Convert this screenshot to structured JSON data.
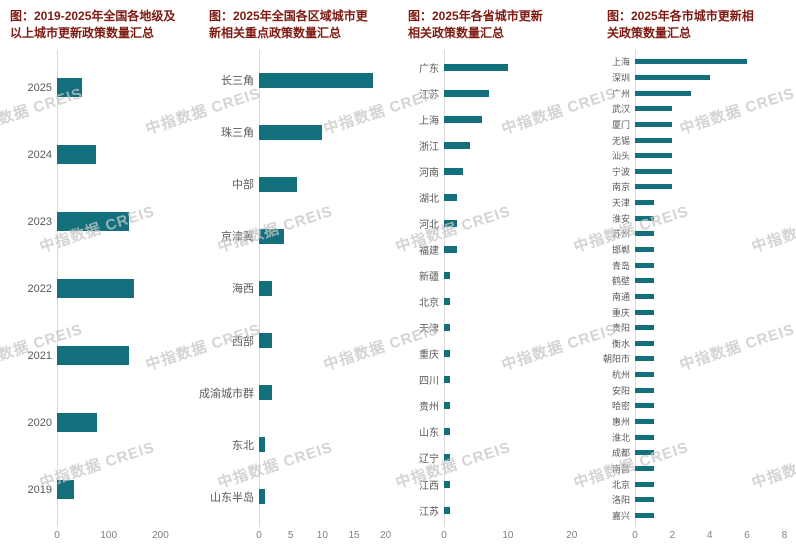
{
  "page": {
    "background": "#ffffff"
  },
  "colors": {
    "bar": "#126f7c",
    "title": "#7e1a12",
    "category_label": "#595959",
    "tick_label": "#808080",
    "axis_line": "#d9d9d9",
    "watermark": "#c6c6c6"
  },
  "watermark": {
    "text": "中指数据 CREIS"
  },
  "chart_data": [
    {
      "type": "bar",
      "orientation": "horizontal",
      "grid": false,
      "legend": false,
      "title": "图：2019-2025年全国各地级及以上城市更新政策数量汇总",
      "categories": [
        "2025",
        "2024",
        "2023",
        "2022",
        "2021",
        "2020",
        "2019"
      ],
      "values": [
        48,
        75,
        139,
        149,
        139,
        78,
        33
      ],
      "xlim": [
        0,
        200
      ],
      "xticks": [
        0,
        100,
        200
      ],
      "xlabel": "",
      "ylabel": ""
    },
    {
      "type": "bar",
      "orientation": "horizontal",
      "grid": false,
      "legend": false,
      "title": "图：2025年全国各区域城市更新相关重点政策数量汇总",
      "categories": [
        "长三角",
        "珠三角",
        "中部",
        "京津冀",
        "海西",
        "西部",
        "成渝城市群",
        "东北",
        "山东半岛"
      ],
      "values": [
        18,
        10,
        6,
        4,
        2,
        2,
        2,
        1,
        1
      ],
      "xlim": [
        0,
        20
      ],
      "xticks": [
        0,
        5,
        10,
        15,
        20
      ],
      "xlabel": "",
      "ylabel": ""
    },
    {
      "type": "bar",
      "orientation": "horizontal",
      "grid": false,
      "legend": false,
      "title": "图：2025年各省城市更新相关政策数量汇总",
      "categories": [
        "广东",
        "江苏",
        "上海",
        "浙江",
        "河南",
        "湖北",
        "河北",
        "福建",
        "新疆",
        "北京",
        "天津",
        "重庆",
        "四川",
        "贵州",
        "山东",
        "辽宁",
        "江西",
        "江苏"
      ],
      "values": [
        10,
        7,
        6,
        4,
        3,
        2,
        2,
        2,
        1,
        1,
        1,
        1,
        1,
        1,
        1,
        1,
        1,
        1
      ],
      "xlim": [
        0,
        20
      ],
      "xticks": [
        0,
        10,
        20
      ],
      "xlabel": "",
      "ylabel": ""
    },
    {
      "type": "bar",
      "orientation": "horizontal",
      "grid": false,
      "legend": false,
      "title": "图：2025年各市城市更新相关政策数量汇总",
      "categories": [
        "上海",
        "深圳",
        "广州",
        "武汉",
        "厦门",
        "无锡",
        "汕头",
        "宁波",
        "南京",
        "天津",
        "淮安",
        "苏州",
        "邯郸",
        "青岛",
        "鹤壁",
        "南通",
        "重庆",
        "贵阳",
        "衡水",
        "朝阳市",
        "杭州",
        "安阳",
        "哈密",
        "惠州",
        "淮北",
        "成都",
        "南昌",
        "北京",
        "洛阳",
        "嘉兴"
      ],
      "values": [
        6,
        4,
        3,
        2,
        2,
        2,
        2,
        2,
        2,
        1,
        1,
        1,
        1,
        1,
        1,
        1,
        1,
        1,
        1,
        1,
        1,
        1,
        1,
        1,
        1,
        1,
        1,
        1,
        1,
        1
      ],
      "xlim": [
        0,
        8
      ],
      "xticks": [
        0,
        2,
        4,
        6,
        8
      ],
      "xlabel": "",
      "ylabel": ""
    }
  ]
}
